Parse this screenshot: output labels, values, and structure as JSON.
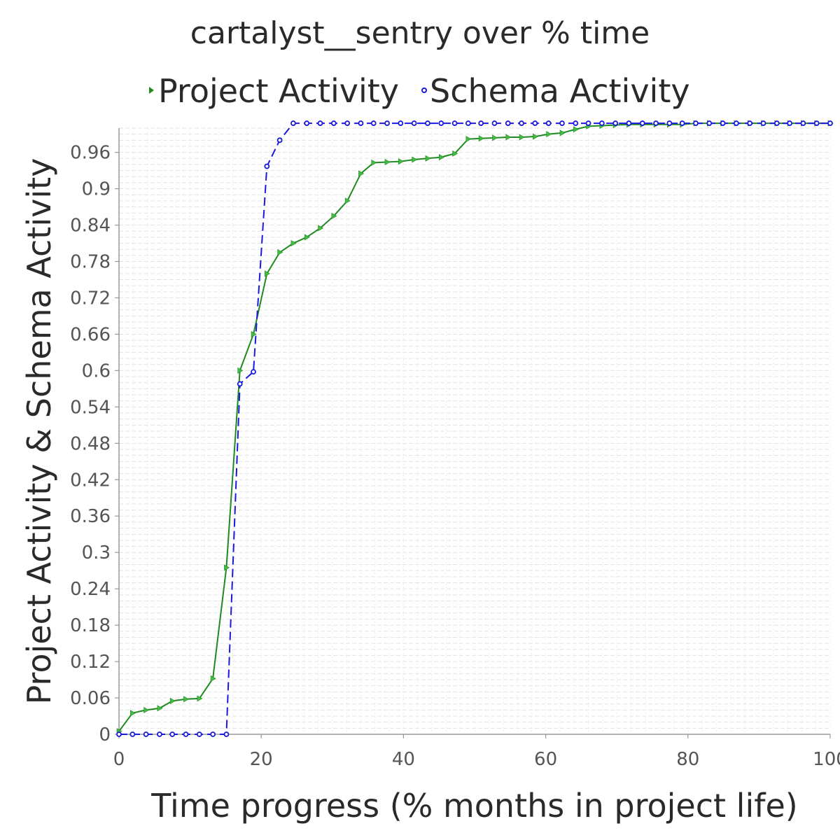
{
  "chart_data": {
    "type": "line",
    "title": "cartalyst__sentry over % time",
    "xlabel": "Time progress (% months in project life)",
    "ylabel": "Project Activity & Schema Activity",
    "xlim": [
      0,
      100
    ],
    "ylim": [
      0,
      1.0
    ],
    "x_ticks": [
      "0",
      "20",
      "40",
      "60",
      "80",
      "100"
    ],
    "y_ticks": [
      "0",
      "0.06",
      "0.12",
      "0.18",
      "0.24",
      "0.3",
      "0.36",
      "0.42",
      "0.48",
      "0.54",
      "0.6",
      "0.66",
      "0.72",
      "0.78",
      "0.84",
      "0.9",
      "0.96"
    ],
    "legend_position": "top",
    "grid": true,
    "series": [
      {
        "name": "Project Activity",
        "color": "#1f8a1f",
        "marker": "triangle",
        "line": "solid",
        "x": [
          0,
          1.9,
          3.8,
          5.7,
          7.5,
          9.4,
          11.3,
          13.2,
          15.1,
          17.0,
          18.9,
          20.8,
          22.6,
          24.5,
          26.4,
          28.3,
          30.2,
          32.1,
          34.0,
          35.8,
          37.7,
          39.6,
          41.5,
          43.4,
          45.3,
          47.2,
          49.1,
          50.9,
          52.8,
          54.7,
          56.6,
          58.5,
          60.4,
          62.3,
          64.2,
          66.0,
          67.9,
          69.8,
          71.7,
          73.6,
          75.5,
          77.4,
          79.2,
          81.1,
          83.0,
          84.9,
          86.8,
          88.7,
          90.6,
          92.5,
          94.3,
          96.2,
          98.1,
          100
        ],
        "y": [
          0.005,
          0.035,
          0.04,
          0.043,
          0.055,
          0.058,
          0.059,
          0.092,
          0.275,
          0.6,
          0.66,
          0.76,
          0.795,
          0.81,
          0.82,
          0.835,
          0.855,
          0.88,
          0.925,
          0.943,
          0.944,
          0.945,
          0.948,
          0.95,
          0.952,
          0.958,
          0.982,
          0.983,
          0.984,
          0.985,
          0.985,
          0.986,
          0.99,
          0.992,
          0.998,
          1.003,
          1.004,
          1.005,
          1.006,
          1.006,
          1.006,
          1.006,
          1.006,
          1.008,
          1.008,
          1.008,
          1.008,
          1.008,
          1.008,
          1.008,
          1.008,
          1.008,
          1.008,
          1.008
        ]
      },
      {
        "name": "Schema Activity",
        "color": "#1a1adf",
        "marker": "circle",
        "line": "dashed",
        "x": [
          0,
          1.9,
          3.8,
          5.7,
          7.5,
          9.4,
          11.3,
          13.2,
          15.1,
          17.0,
          18.9,
          20.8,
          22.6,
          24.5,
          26.4,
          28.3,
          30.2,
          32.1,
          34.0,
          35.8,
          37.7,
          39.6,
          41.5,
          43.4,
          45.3,
          47.2,
          49.1,
          50.9,
          52.8,
          54.7,
          56.6,
          58.5,
          60.4,
          62.3,
          64.2,
          66.0,
          67.9,
          69.8,
          71.7,
          73.6,
          75.5,
          77.4,
          79.2,
          81.1,
          83.0,
          84.9,
          86.8,
          88.7,
          90.6,
          92.5,
          94.3,
          96.2,
          98.1,
          100
        ],
        "y": [
          0,
          0,
          0,
          0,
          0,
          0,
          0,
          0,
          0,
          0.578,
          0.598,
          0.937,
          0.98,
          1.008,
          1.008,
          1.008,
          1.008,
          1.008,
          1.008,
          1.008,
          1.008,
          1.008,
          1.008,
          1.008,
          1.008,
          1.008,
          1.008,
          1.008,
          1.008,
          1.008,
          1.008,
          1.008,
          1.008,
          1.008,
          1.008,
          1.008,
          1.008,
          1.008,
          1.008,
          1.008,
          1.008,
          1.008,
          1.008,
          1.008,
          1.008,
          1.008,
          1.008,
          1.008,
          1.008,
          1.008,
          1.008,
          1.008,
          1.008,
          1.008
        ]
      }
    ]
  }
}
